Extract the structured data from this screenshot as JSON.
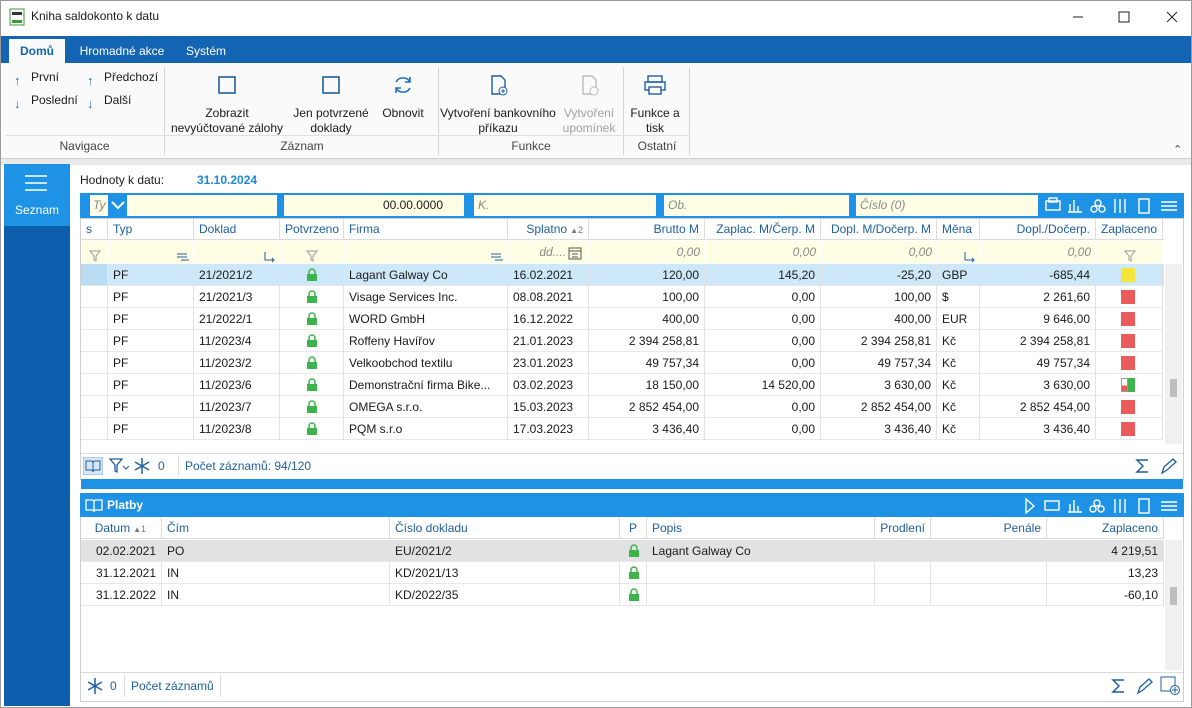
{
  "window": {
    "title": "Kniha saldokonto k datu"
  },
  "ribbon": {
    "tabs": [
      "Domů",
      "Hromadné akce",
      "Systém"
    ],
    "navigation": {
      "label": "Navigace",
      "buttons": [
        "První",
        "Předchozí",
        "Poslední",
        "Další"
      ]
    },
    "groups": [
      {
        "label": "Záznam",
        "buttons": [
          "Zobrazit nevyúčtované zálohy",
          "Jen potvrzené doklady",
          "Obnovit"
        ]
      },
      {
        "label": "Funkce",
        "buttons": [
          "Vytvoření bankovního příkazu",
          "Vytvoření upomínek"
        ]
      },
      {
        "label": "Ostatní",
        "buttons": [
          "Funkce a tisk"
        ]
      }
    ]
  },
  "sidebar": {
    "item": "Seznam"
  },
  "filter": {
    "label": "Hodnoty k datu:",
    "date": "31.10.2024",
    "type_placeholder": "Ty",
    "amount": "00.00.0000",
    "account_placeholder": "K.",
    "partner_placeholder": "Ob.",
    "number_placeholder": "Číslo (0)"
  },
  "grid": {
    "columns": [
      {
        "label": "s"
      },
      {
        "label": "Typ"
      },
      {
        "label": "Doklad"
      },
      {
        "label": "Potvrzeno"
      },
      {
        "label": "Firma"
      },
      {
        "label": "Splatno",
        "sort_order": "2",
        "filter": "dd...."
      },
      {
        "label": "Brutto M",
        "filter": "0,00"
      },
      {
        "label": "Zaplac. M/Čerp. M",
        "filter": "0,00"
      },
      {
        "label": "Dopl. M/Dočerp. M",
        "filter": "0,00"
      },
      {
        "label": "Měna"
      },
      {
        "label": "Dopl./Dočerp.",
        "filter": "0,00"
      },
      {
        "label": "Zaplaceno"
      }
    ],
    "rows": [
      {
        "typ": "PF",
        "doklad": "21/2021/2",
        "firma": "Lagant Galway Co",
        "splatno": "16.02.2021",
        "brutto": "120,00",
        "zaplac": "145,20",
        "dopl": "-25,20",
        "mena": "GBP",
        "dopl_docerp": "-685,44",
        "paid_colors": [
          "#f5e53a"
        ]
      },
      {
        "typ": "PF",
        "doklad": "21/2021/3",
        "firma": "Visage Services Inc.",
        "splatno": "08.08.2021",
        "brutto": "100,00",
        "zaplac": "0,00",
        "dopl": "100,00",
        "mena": "$",
        "dopl_docerp": "2 261,60",
        "paid_colors": [
          "#ec5b5b"
        ]
      },
      {
        "typ": "PF",
        "doklad": "21/2022/1",
        "firma": "WORD GmbH",
        "splatno": "16.12.2022",
        "brutto": "400,00",
        "zaplac": "0,00",
        "dopl": "400,00",
        "mena": "EUR",
        "dopl_docerp": "9 646,00",
        "paid_colors": [
          "#ec5b5b"
        ]
      },
      {
        "typ": "PF",
        "doklad": "11/2023/4",
        "firma": "Roffeny Havířov",
        "splatno": "21.01.2023",
        "brutto": "2 394 258,81",
        "zaplac": "0,00",
        "dopl": "2 394 258,81",
        "mena": "Kč",
        "dopl_docerp": "2 394 258,81",
        "paid_colors": [
          "#ec5b5b"
        ]
      },
      {
        "typ": "PF",
        "doklad": "11/2023/2",
        "firma": "Velkoobchod textilu",
        "splatno": "23.01.2023",
        "brutto": "49 757,34",
        "zaplac": "0,00",
        "dopl": "49 757,34",
        "mena": "Kč",
        "dopl_docerp": "49 757,34",
        "paid_colors": [
          "#ec5b5b"
        ]
      },
      {
        "typ": "PF",
        "doklad": "11/2023/6",
        "firma": "Demonstrační firma Bike...",
        "splatno": "03.02.2023",
        "brutto": "18 150,00",
        "zaplac": "14 520,00",
        "dopl": "3 630,00",
        "mena": "Kč",
        "dopl_docerp": "3 630,00",
        "paid_colors": [
          "#ec5b5b",
          "#3cb44b"
        ]
      },
      {
        "typ": "PF",
        "doklad": "11/2023/7",
        "firma": "OMEGA s.r.o.",
        "splatno": "15.03.2023",
        "brutto": "2 852 454,00",
        "zaplac": "0,00",
        "dopl": "2 852 454,00",
        "mena": "Kč",
        "dopl_docerp": "2 852 454,00",
        "paid_colors": [
          "#ec5b5b"
        ]
      },
      {
        "typ": "PF",
        "doklad": "11/2023/8",
        "firma": "PQM s.r.o",
        "splatno": "17.03.2023",
        "brutto": "3 436,40",
        "zaplac": "0,00",
        "dopl": "3 436,40",
        "mena": "Kč",
        "dopl_docerp": "3 436,40",
        "paid_colors": [
          "#ec5b5b"
        ]
      }
    ],
    "filter_count": "0",
    "status": "Počet záznamů: 94/120"
  },
  "payments": {
    "title": "Platby",
    "columns": [
      {
        "label": "Datum",
        "sort_order": "1"
      },
      {
        "label": "Čím"
      },
      {
        "label": "Číslo dokladu"
      },
      {
        "label": "P"
      },
      {
        "label": "Popis"
      },
      {
        "label": "Prodlení"
      },
      {
        "label": "Penále"
      },
      {
        "label": "Zaplaceno"
      }
    ],
    "rows": [
      {
        "datum": "02.02.2021",
        "cim": "PO",
        "cislo": "EU/2021/2",
        "popis": "Lagant Galway Co",
        "zaplaceno": "4 219,51"
      },
      {
        "datum": "31.12.2021",
        "cim": "IN",
        "cislo": "KD/2021/13",
        "zaplaceno": "13,23"
      },
      {
        "datum": "31.12.2022",
        "cim": "IN",
        "cislo": "KD/2022/35",
        "zaplaceno": "-60,10"
      }
    ],
    "filter_count": "0",
    "status": "Počet záznamů"
  }
}
